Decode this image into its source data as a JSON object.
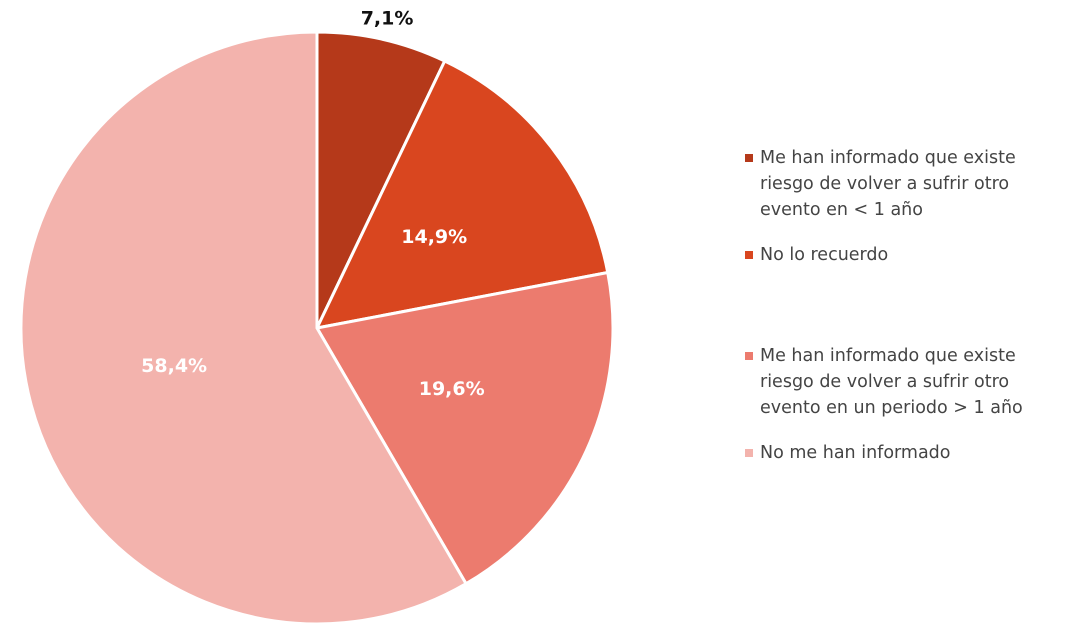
{
  "chart_data": {
    "type": "pie",
    "categories": [
      "Me han informado que existe riesgo de volver a sufrir otro evento en < 1 año",
      "No lo recuerdo",
      "Me han informado que existe riesgo de volver a sufrir otro evento en un periodo > 1 año",
      "No me han informado"
    ],
    "values": [
      7.1,
      14.9,
      19.6,
      58.4
    ],
    "value_labels": [
      "7,1%",
      "14,9%",
      "19,6%",
      "58,4%"
    ],
    "colors": [
      "#b5391a",
      "#d9461f",
      "#ec7b6e",
      "#f3b3ad"
    ],
    "legend": "right"
  }
}
